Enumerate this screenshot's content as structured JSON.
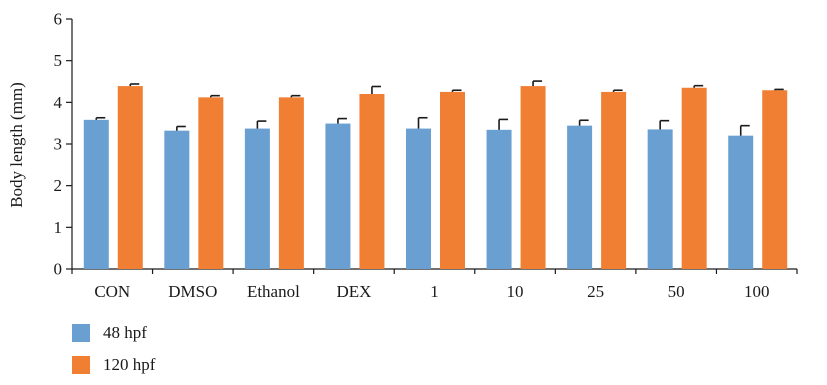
{
  "chart_data": {
    "type": "bar",
    "title": "",
    "xlabel": "",
    "ylabel": "Body length (mm)",
    "ylim": [
      0,
      6
    ],
    "yticks": [
      0,
      1,
      2,
      3,
      4,
      5,
      6
    ],
    "grid": false,
    "legend_position": "bottom-left",
    "categories": [
      "CON",
      "DMSO",
      "Ethanol",
      "DEX",
      "1",
      "10",
      "25",
      "50",
      "100"
    ],
    "series": [
      {
        "name": "48 hpf",
        "color": "#6a9fd2",
        "values": [
          3.58,
          3.32,
          3.37,
          3.49,
          3.37,
          3.34,
          3.44,
          3.35,
          3.2
        ],
        "error": [
          0.05,
          0.1,
          0.18,
          0.12,
          0.26,
          0.25,
          0.13,
          0.21,
          0.24
        ]
      },
      {
        "name": "120 hpf",
        "color": "#f07f34",
        "values": [
          4.39,
          4.12,
          4.12,
          4.2,
          4.25,
          4.39,
          4.25,
          4.35,
          4.29
        ],
        "error": [
          0.05,
          0.04,
          0.04,
          0.18,
          0.04,
          0.12,
          0.04,
          0.05,
          0.02
        ]
      }
    ]
  }
}
